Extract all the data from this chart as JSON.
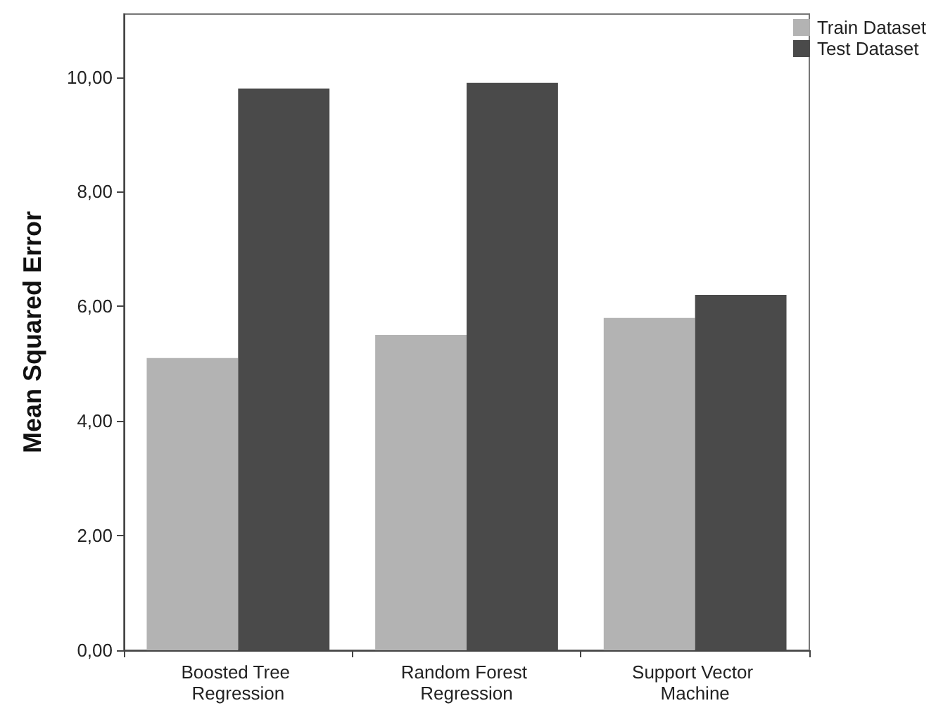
{
  "chart_data": {
    "type": "bar",
    "ylabel": "Mean Squared Error",
    "categories": [
      "Boosted Tree Regression",
      "Random Forest Regression",
      "Support Vector Machine"
    ],
    "series": [
      {
        "name": "Train Dataset",
        "color": "#b3b3b3",
        "values": [
          5.1,
          5.5,
          5.8
        ]
      },
      {
        "name": "Test Dataset",
        "color": "#4a4a4a",
        "values": [
          9.8,
          9.9,
          6.2
        ]
      }
    ],
    "ylim": [
      0,
      11.1
    ],
    "yticks": [
      {
        "value": 0,
        "label": "0,00"
      },
      {
        "value": 2,
        "label": "2,00"
      },
      {
        "value": 4,
        "label": "4,00"
      },
      {
        "value": 6,
        "label": "6,00"
      },
      {
        "value": 8,
        "label": "8,00"
      },
      {
        "value": 10,
        "label": "10,00"
      }
    ],
    "grid": false,
    "legend": "top right"
  }
}
